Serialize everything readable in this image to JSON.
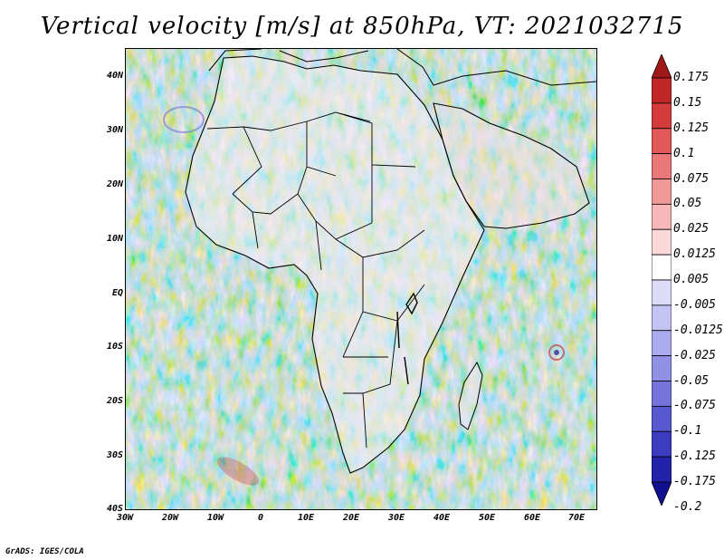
{
  "title": "Vertical velocity [m/s] at 850hPa, VT: 2021032715",
  "footer": "GrADS: IGES/COLA",
  "map": {
    "lat_ticks": [
      "40N",
      "30N",
      "20N",
      "10N",
      "EQ",
      "10S",
      "20S",
      "30S",
      "40S"
    ],
    "lon_ticks": [
      "30W",
      "20W",
      "10W",
      "0",
      "10E",
      "20E",
      "30E",
      "40E",
      "50E",
      "60E",
      "70E"
    ]
  },
  "colorbar": {
    "labels": [
      "0.175",
      "0.15",
      "0.125",
      "0.1",
      "0.075",
      "0.05",
      "0.025",
      "0.0125",
      "0.005",
      "-0.005",
      "-0.0125",
      "-0.025",
      "-0.05",
      "-0.075",
      "-0.1",
      "-0.125",
      "-0.175",
      "-0.2"
    ],
    "colors": [
      "#a01818",
      "#c02828",
      "#d43c3c",
      "#e25858",
      "#ea7878",
      "#f09898",
      "#f6b8b8",
      "#fbd8d8",
      "#ffffff",
      "#dcdcf8",
      "#c4c4f2",
      "#aaaaec",
      "#9090e4",
      "#7474da",
      "#5858d0",
      "#3c3cc0",
      "#2222aa",
      "#101090"
    ]
  }
}
